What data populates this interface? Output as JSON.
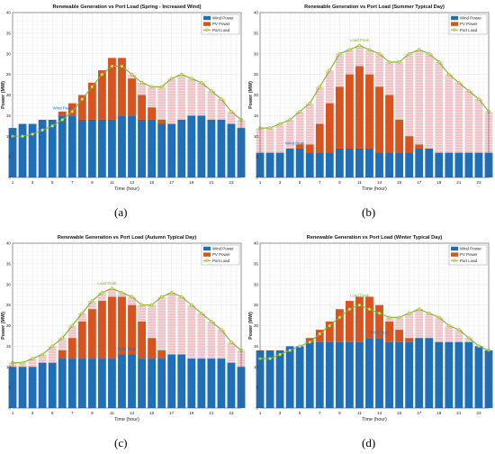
{
  "chart_data": [
    {
      "type": "bar",
      "panel_label": "(a)",
      "title": "Renewable Generation vs Port Load (Spring - Increased Wind)",
      "xlabel": "Time (hour)",
      "ylabel": "Power (MW)",
      "xlim": [
        1,
        24
      ],
      "ylim": [
        0,
        40
      ],
      "xticks": [
        1,
        3,
        5,
        7,
        9,
        11,
        13,
        15,
        17,
        19,
        21,
        23
      ],
      "yticks": [
        0,
        5,
        10,
        15,
        20,
        25,
        30,
        35,
        40
      ],
      "grid": true,
      "legend_position": "top-right",
      "legend": [
        "Wind Power",
        "PV Power",
        "Port Load"
      ],
      "annotations": [
        {
          "text": "Wind Peak",
          "x": 6,
          "y": 16.5
        }
      ],
      "x": [
        1,
        2,
        3,
        4,
        5,
        6,
        7,
        8,
        9,
        10,
        11,
        12,
        13,
        14,
        15,
        16,
        17,
        18,
        19,
        20,
        21,
        22,
        23,
        24
      ],
      "series": [
        {
          "name": "Wind Power",
          "kind": "bar",
          "values": [
            12,
            13,
            13,
            14,
            14,
            15,
            15,
            14,
            14,
            14,
            14,
            15,
            15,
            14,
            14,
            13,
            13,
            14,
            15,
            15,
            14,
            14,
            13,
            12
          ]
        },
        {
          "name": "PV Power",
          "kind": "bar",
          "values": [
            0,
            0,
            0,
            0,
            0,
            1,
            3,
            6,
            9,
            12,
            15,
            14,
            9,
            6,
            3,
            1,
            0,
            0,
            0,
            0,
            0,
            0,
            0,
            0
          ]
        },
        {
          "name": "Port Load",
          "kind": "line",
          "values": [
            10,
            10,
            10.5,
            11.5,
            12.5,
            14,
            16,
            19,
            22,
            25,
            27,
            27,
            25,
            23,
            22,
            22,
            24,
            25,
            24,
            23,
            21,
            19,
            16,
            14
          ]
        }
      ]
    },
    {
      "type": "bar",
      "panel_label": "(b)",
      "title": "Renewable Generation vs Port Load (Summer Typical Day)",
      "xlabel": "Time (hour)",
      "ylabel": "Power (MW)",
      "xlim": [
        1,
        24
      ],
      "ylim": [
        0,
        40
      ],
      "xticks": [
        1,
        3,
        5,
        7,
        9,
        11,
        13,
        15,
        17,
        19,
        21,
        23
      ],
      "yticks": [
        0,
        5,
        10,
        15,
        20,
        25,
        30,
        35,
        40
      ],
      "grid": true,
      "legend_position": "top-right",
      "legend": [
        "Wind Power",
        "PV Power",
        "Port Load"
      ],
      "annotations": [
        {
          "text": "Load Peak",
          "x": 11,
          "y": 33
        },
        {
          "text": "Wind Peak",
          "x": 4.5,
          "y": 8
        }
      ],
      "x": [
        1,
        2,
        3,
        4,
        5,
        6,
        7,
        8,
        9,
        10,
        11,
        12,
        13,
        14,
        15,
        16,
        17,
        18,
        19,
        20,
        21,
        22,
        23,
        24
      ],
      "series": [
        {
          "name": "Wind Power",
          "kind": "bar",
          "values": [
            6,
            6,
            6,
            7,
            7,
            6,
            6,
            6,
            7,
            7,
            7,
            7,
            6,
            6,
            6,
            6,
            7,
            7,
            6,
            6,
            6,
            6,
            6,
            6
          ]
        },
        {
          "name": "PV Power",
          "kind": "bar",
          "values": [
            0,
            0,
            0,
            0,
            1,
            2,
            7,
            12,
            15,
            18,
            20,
            18,
            16,
            14,
            8,
            4,
            1,
            0,
            0,
            0,
            0,
            0,
            0,
            0
          ]
        },
        {
          "name": "Port Load",
          "kind": "line",
          "values": [
            12,
            12,
            13,
            14,
            16,
            18,
            22,
            26,
            30,
            31,
            32,
            31,
            30,
            28,
            28,
            30,
            31,
            30,
            28,
            25,
            23,
            21,
            19,
            16
          ]
        }
      ]
    },
    {
      "type": "bar",
      "panel_label": "(c)",
      "title": "Renewable Generation vs Port Load (Autumn Typical Day)",
      "xlabel": "Time (hour)",
      "ylabel": "Power (MW)",
      "xlim": [
        1,
        24
      ],
      "ylim": [
        0,
        40
      ],
      "xticks": [
        1,
        3,
        5,
        7,
        9,
        11,
        13,
        15,
        17,
        19,
        21,
        23
      ],
      "yticks": [
        0,
        5,
        10,
        15,
        20,
        25,
        30,
        35,
        40
      ],
      "grid": true,
      "legend_position": "top-right",
      "legend": [
        "Wind Power",
        "PV Power",
        "Port Load"
      ],
      "annotations": [
        {
          "text": "Load Peak",
          "x": 10.5,
          "y": 30
        },
        {
          "text": "Wind Peak",
          "x": 12.5,
          "y": 14
        }
      ],
      "x": [
        1,
        2,
        3,
        4,
        5,
        6,
        7,
        8,
        9,
        10,
        11,
        12,
        13,
        14,
        15,
        16,
        17,
        18,
        19,
        20,
        21,
        22,
        23,
        24
      ],
      "series": [
        {
          "name": "Wind Power",
          "kind": "bar",
          "values": [
            10,
            10,
            10,
            11,
            11,
            12,
            12,
            12,
            12,
            12,
            12,
            13,
            13,
            12,
            12,
            12,
            13,
            13,
            12,
            12,
            12,
            12,
            11,
            10
          ]
        },
        {
          "name": "PV Power",
          "kind": "bar",
          "values": [
            0,
            0,
            0,
            0,
            0,
            2,
            5,
            9,
            12,
            14,
            15,
            14,
            12,
            9,
            5,
            2,
            0,
            0,
            0,
            0,
            0,
            0,
            0,
            0
          ]
        },
        {
          "name": "Port Load",
          "kind": "line",
          "values": [
            11,
            11,
            12,
            13,
            15,
            17,
            20,
            23,
            26,
            28,
            29,
            28,
            27,
            25,
            25,
            27,
            28,
            27,
            25,
            23,
            21,
            19,
            16,
            14
          ]
        }
      ]
    },
    {
      "type": "bar",
      "panel_label": "(d)",
      "title": "Renewable Generation vs Port Load (Winter Typical Day)",
      "xlabel": "Time (hour)",
      "ylabel": "Power (MW)",
      "xlim": [
        1,
        24
      ],
      "ylim": [
        0,
        40
      ],
      "xticks": [
        1,
        3,
        5,
        7,
        9,
        11,
        13,
        15,
        17,
        19,
        21,
        23
      ],
      "yticks": [
        0,
        5,
        10,
        15,
        20,
        25,
        30,
        35,
        40
      ],
      "grid": true,
      "legend_position": "top-right",
      "legend": [
        "Wind Power",
        "PV Power",
        "Port Load"
      ],
      "annotations": [
        {
          "text": "Load Peak",
          "x": 11,
          "y": 27
        },
        {
          "text": "Wind Peak",
          "x": 13,
          "y": 18
        }
      ],
      "x": [
        1,
        2,
        3,
        4,
        5,
        6,
        7,
        8,
        9,
        10,
        11,
        12,
        13,
        14,
        15,
        16,
        17,
        18,
        19,
        20,
        21,
        22,
        23,
        24
      ],
      "series": [
        {
          "name": "Wind Power",
          "kind": "bar",
          "values": [
            14,
            14,
            14,
            15,
            15,
            16,
            16,
            16,
            16,
            16,
            16,
            17,
            17,
            16,
            16,
            16,
            17,
            17,
            16,
            16,
            16,
            16,
            15,
            14
          ]
        },
        {
          "name": "PV Power",
          "kind": "bar",
          "values": [
            0,
            0,
            0,
            0,
            0,
            1,
            3,
            5,
            8,
            10,
            11,
            10,
            8,
            5,
            3,
            1,
            0,
            0,
            0,
            0,
            0,
            0,
            0,
            0
          ]
        },
        {
          "name": "Port Load",
          "kind": "line",
          "values": [
            12,
            12,
            13,
            14,
            15,
            16,
            18,
            20,
            22,
            24,
            25,
            24,
            23,
            22,
            22,
            23,
            24,
            23,
            22,
            20,
            19,
            17,
            15,
            14
          ]
        }
      ]
    }
  ],
  "style": {
    "wind_color": "#1f6fb8",
    "pv_color": "#d9531e",
    "deficit_color": "#eec4c9",
    "line_color": "#7fae2e",
    "marker_color": "#d6e85a",
    "annotation_color": "#2a6fb6",
    "load_peak_color": "#7fae2e"
  }
}
